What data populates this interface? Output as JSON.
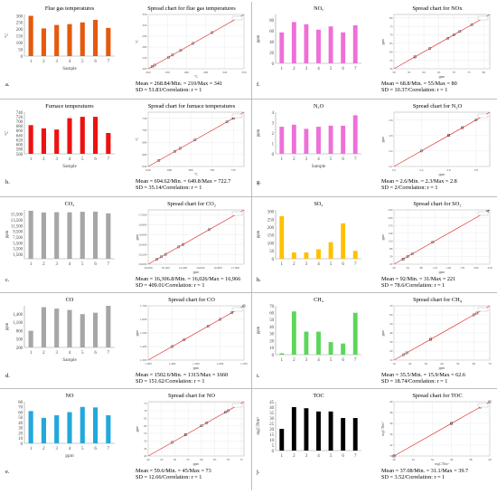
{
  "rows": [
    {
      "left": {
        "letter": "a.",
        "bar": {
          "title": "Flue gas temperatures",
          "ylabel": "°C",
          "xlabel": "Sample",
          "color": "#e55a0d",
          "ylim": [
            0,
            310
          ],
          "ticks": [
            0,
            50,
            100,
            150,
            200,
            250,
            300
          ],
          "categories": [
            "1",
            "2",
            "3",
            "4",
            "5",
            "6",
            "7"
          ],
          "values": [
            300,
            206,
            232,
            238,
            251,
            270,
            210
          ]
        },
        "spread": {
          "title": "Spread chart for flue gas temperatures",
          "xlabel": "°C",
          "ylabel": "°C",
          "range": [
            200,
            350
          ],
          "ticks": [
            200,
            230,
            260,
            290,
            320,
            350
          ],
          "stats": [
            "Mean = 268.84/Min. = 210/Max = 341",
            "SD = 51.83/Correlation: r = 1"
          ]
        }
      },
      "right": {
        "letter": "f.",
        "bar": {
          "title": "NOₓ",
          "ylabel": "ppm",
          "xlabel": "",
          "color": "#ee6fd8",
          "ylim": [
            0,
            90
          ],
          "ticks": [
            0,
            20,
            40,
            60,
            80
          ],
          "categories": [
            "1",
            "2",
            "3",
            "4",
            "5",
            "6",
            "7"
          ],
          "values": [
            57,
            76,
            72,
            62,
            68,
            57,
            70
          ]
        },
        "spread": {
          "title": "Spread chart for NOx",
          "xlabel": "ppm",
          "ylabel": "ppm",
          "range": [
            50,
            82
          ],
          "ticks": [
            50,
            55,
            60,
            65,
            70,
            75,
            80
          ],
          "stats": [
            "Mean = 68.8/Min. = 55/Max = 80",
            "SD = 10.37/Correlation: r = 1"
          ]
        }
      }
    },
    {
      "left": {
        "letter": "b.",
        "bar": {
          "title": "Furnace temperatures",
          "ylabel": "°C",
          "xlabel": "Sample",
          "color": "#ee1111",
          "ylim": [
            560,
            740
          ],
          "ticks": [
            560,
            580,
            600,
            620,
            640,
            660,
            680,
            700,
            720,
            740
          ],
          "categories": [
            "1",
            "2",
            "3",
            "4",
            "5",
            "6",
            "7"
          ],
          "values": [
            684,
            670,
            665,
            714,
            720,
            720,
            650
          ]
        },
        "spread": {
          "title": "Spread chart for furnace temperatures",
          "xlabel": "°C",
          "ylabel": "°C",
          "range": [
            640,
            730
          ],
          "ticks": [
            640,
            660,
            680,
            700,
            720
          ],
          "stats": [
            "Mean = 694.62/Min. = 649.8/Max = 722.7",
            "SD = 35.14/Correlation: r = 1"
          ]
        }
      },
      "right": {
        "letter": "g.",
        "bar": {
          "title": "N₂O",
          "ylabel": "ppm",
          "xlabel": "Sample",
          "color": "#ee6fd8",
          "ylim": [
            0,
            4
          ],
          "ticks": [
            0,
            1,
            2,
            3,
            4
          ],
          "categories": [
            "1",
            "2",
            "3",
            "4",
            "5",
            "6",
            "7"
          ],
          "values": [
            2.6,
            2.8,
            2.4,
            2.6,
            2.7,
            2.7,
            3.7
          ]
        },
        "spread": {
          "title": "Spread chart for N₂O",
          "xlabel": "ppm",
          "ylabel": "ppm",
          "range": [
            2.2,
            2.9
          ],
          "ticks": [
            2.2,
            2.4,
            2.6,
            2.8
          ],
          "stats": [
            "Mean = 2.6/Min. = 2.3/Max = 2.8",
            "SD = 2/Correlation: r = 1"
          ]
        }
      }
    },
    {
      "left": {
        "letter": "c.",
        "bar": {
          "title": "CO₂",
          "ylabel": "ppm",
          "xlabel": "",
          "color": "#a6a6a6",
          "ylim": [
            0,
            17000
          ],
          "ticks": [
            1500,
            3500,
            5500,
            7500,
            9500,
            11500,
            13500,
            15500
          ],
          "categories": [
            "1",
            "2",
            "3",
            "4",
            "5",
            "6",
            "7"
          ],
          "values": [
            16700,
            16100,
            16200,
            16150,
            16350,
            16400,
            15800
          ]
        },
        "spread": {
          "title": "Spread chart for CO₂",
          "xlabel": "ppm",
          "ylabel": "ppm",
          "range": [
            16000,
            17100
          ],
          "ticks": [
            16000,
            16200,
            16400,
            16600,
            16800,
            17000
          ],
          "stats": [
            "Mean = 16,306.8/Min. = 16,026/Max = 16,966",
            "SD = 409.01/Correlation: r = 1"
          ]
        }
      },
      "right": {
        "letter": "h.",
        "bar": {
          "title": "SO₂",
          "ylabel": "ppm",
          "xlabel": "",
          "color": "#ffc000",
          "ylim": [
            0,
            310
          ],
          "ticks": [
            0,
            50,
            100,
            150,
            200,
            250,
            300
          ],
          "categories": [
            "1",
            "2",
            "3",
            "4",
            "5",
            "6",
            "7"
          ],
          "values": [
            270,
            40,
            40,
            60,
            105,
            225,
            50
          ]
        },
        "spread": {
          "title": "Spread chart for SO₂",
          "xlabel": "ppm",
          "ylabel": "ppm",
          "range": [
            20,
            230
          ],
          "ticks": [
            20,
            50,
            80,
            110,
            140,
            170,
            200,
            230
          ],
          "stats": [
            "Mean = 92/Min. = 31/Max = 221",
            "SD = 78.6/Correlation: r = 1"
          ]
        }
      }
    },
    {
      "left": {
        "letter": "d.",
        "bar": {
          "title": "CO",
          "ylabel": "ppm",
          "xlabel": "Sample",
          "color": "#a6a6a6",
          "ylim": [
            200,
            1700
          ],
          "ticks": [
            200,
            500,
            800,
            1100,
            1400
          ],
          "categories": [
            "1",
            "2",
            "3",
            "4",
            "5",
            "6",
            "7"
          ],
          "values": [
            800,
            1650,
            1600,
            1550,
            1400,
            1450,
            1700
          ]
        },
        "spread": {
          "title": "Spread chart for CO",
          "xlabel": "ppm",
          "ylabel": "ppm",
          "range": [
            1300,
            1700
          ],
          "ticks": [
            1300,
            1400,
            1500,
            1600,
            1700
          ],
          "stats": [
            "Mean = 1502.6/Min. = 1315/Max = 1660",
            "SD = 151.62/Correlation: r = 1"
          ]
        }
      },
      "right": {
        "letter": "i.",
        "bar": {
          "title": "CH₄",
          "ylabel": "ppm",
          "xlabel": "",
          "color": "#5bd75b",
          "ylim": [
            0,
            70
          ],
          "ticks": [
            0,
            10,
            20,
            30,
            40,
            50,
            60,
            70
          ],
          "categories": [
            "1",
            "2",
            "3",
            "4",
            "5",
            "6",
            "7"
          ],
          "values": [
            2,
            62,
            33,
            33,
            18,
            16,
            60
          ]
        },
        "spread": {
          "title": "Spread chart for CH₄",
          "xlabel": "ppm",
          "ylabel": "ppm",
          "range": [
            10,
            70
          ],
          "ticks": [
            10,
            20,
            30,
            40,
            50,
            60,
            70
          ],
          "stats": [
            "Mean = 35.5/Min. = 15.9/Max = 62.6",
            "SD = 18.74/Correlation: r = 1"
          ]
        }
      }
    },
    {
      "left": {
        "letter": "e.",
        "bar": {
          "title": "NO",
          "ylabel": "",
          "xlabel": "ppm",
          "color": "#23a8dc",
          "ylim": [
            0,
            80
          ],
          "ticks": [
            0,
            10,
            20,
            30,
            40,
            50,
            60,
            70,
            80
          ],
          "categories": [
            "1",
            "2",
            "3",
            "4",
            "5",
            "6",
            "7"
          ],
          "values": [
            62,
            49,
            54,
            60,
            70,
            69,
            54
          ]
        },
        "spread": {
          "title": "Spread chart for NO",
          "xlabel": "ppm",
          "ylabel": "ppm",
          "range": [
            40,
            76
          ],
          "ticks": [
            40,
            45,
            50,
            55,
            60,
            65,
            70,
            75
          ],
          "stats": [
            "Mean = 59.6/Min. = 45/Max = 73",
            "SD = 12.66/Correlation: r = 1"
          ]
        }
      },
      "right": {
        "letter": "j.",
        "bar": {
          "title": "TOC",
          "ylabel": "mgC/Nm³",
          "xlabel": "",
          "color": "#000000",
          "ylim": [
            0,
            45
          ],
          "ticks": [
            0,
            5,
            10,
            15,
            20,
            25,
            30,
            35,
            40,
            45
          ],
          "categories": [
            "1",
            "2",
            "3",
            "4",
            "5",
            "6",
            "7"
          ],
          "values": [
            20,
            40,
            39,
            36,
            36,
            30,
            30
          ]
        },
        "spread": {
          "title": "Spread chart for TOC",
          "xlabel": "mgC/Nm³",
          "ylabel": "mgC/Nm³",
          "range": [
            30,
            40
          ],
          "ticks": [
            30,
            32,
            34,
            36,
            38,
            40
          ],
          "stats": [
            "Mean = 37.08/Min. = 31.1/Max = 39.7",
            "SD = 3.52/Correlation: r = 1"
          ]
        }
      }
    }
  ]
}
